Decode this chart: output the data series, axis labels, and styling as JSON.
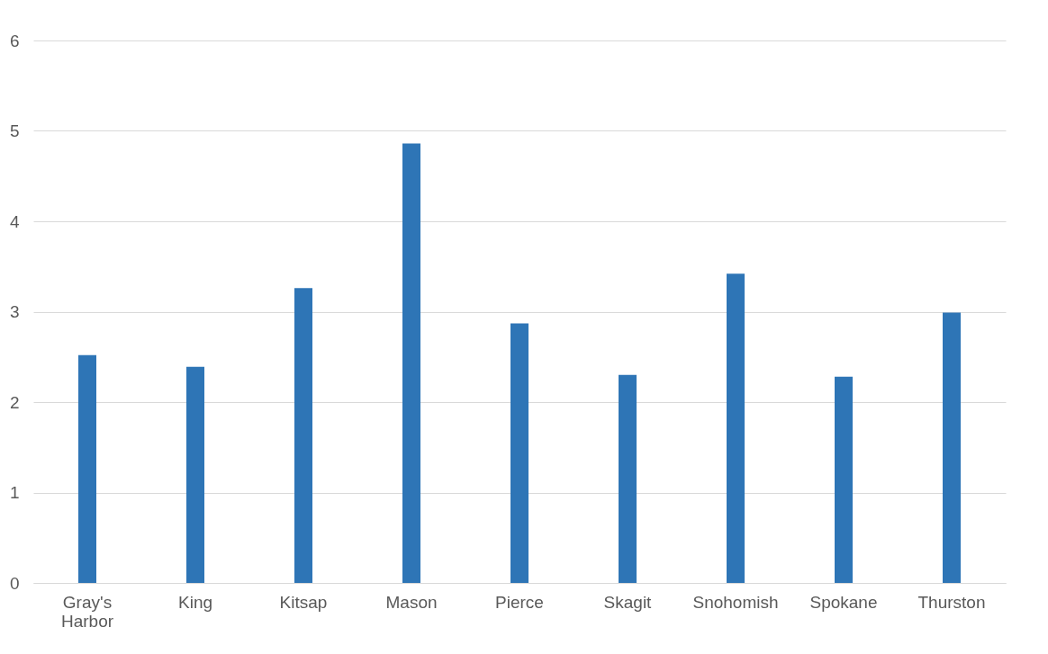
{
  "chart_data": {
    "type": "bar",
    "categories": [
      "Gray's Harbor",
      "King",
      "Kitsap",
      "Mason",
      "Pierce",
      "Skagit",
      "Snohomish",
      "Spokane",
      "Thurston"
    ],
    "values": [
      2.52,
      2.39,
      3.26,
      4.86,
      2.87,
      2.3,
      3.42,
      2.28,
      2.99
    ],
    "color": "#2e75b6",
    "ylim": [
      0,
      6
    ],
    "yticks": [
      0,
      1,
      2,
      3,
      4,
      5,
      6
    ],
    "grid": "y"
  }
}
